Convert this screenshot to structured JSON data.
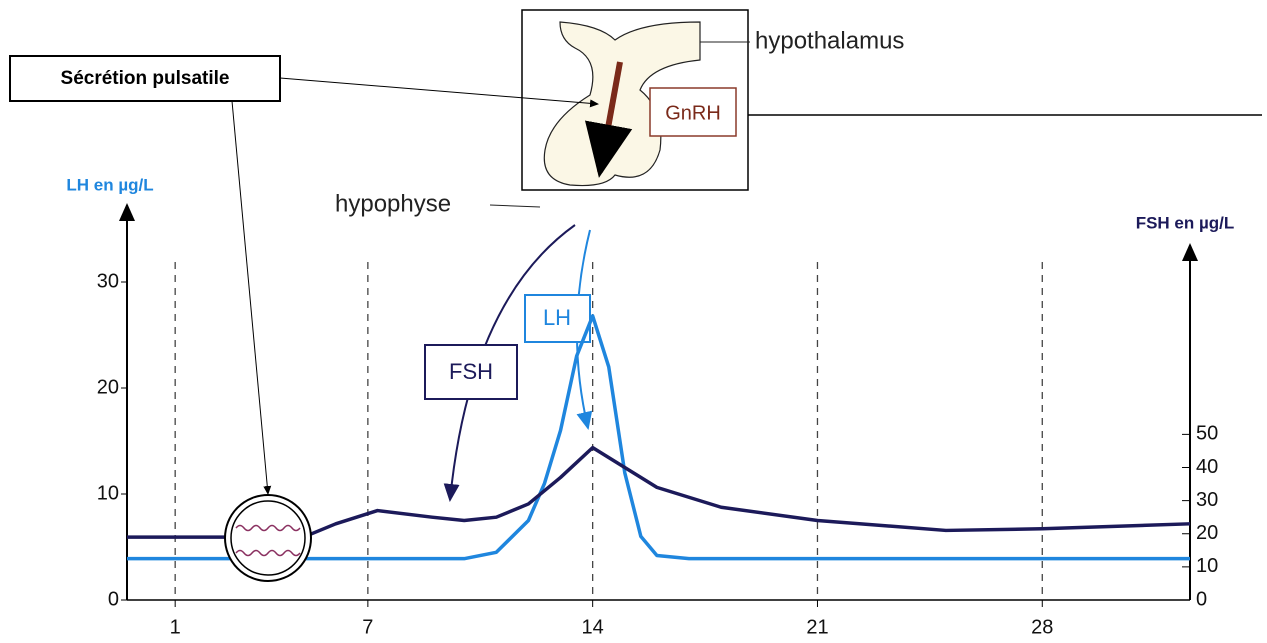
{
  "chart_data": {
    "type": "line",
    "ylabel": "LH en µg/L",
    "y2label": "FSH en µg/L",
    "callout": "Sécrétion pulsatile",
    "upper_label": "hypothalamus",
    "lower_label": "hypophyse",
    "hormone": "GnRH",
    "xlim": [
      -0.5,
      32.6
    ],
    "xticks": [
      1,
      7,
      14,
      21,
      28
    ],
    "ylim": [
      0,
      35
    ],
    "yticks": [
      0,
      10,
      20,
      30
    ],
    "y2lim": [
      0,
      112
    ],
    "y2ticks": [
      0,
      10,
      20,
      30,
      40,
      50
    ],
    "grid": true,
    "series": [
      {
        "name": "LH",
        "color": "#1f86de",
        "axis": "y",
        "x": [
          -0.5,
          10,
          11,
          12,
          12.5,
          13,
          13.5,
          14,
          14.5,
          15,
          15.5,
          16,
          17,
          32.6
        ],
        "values": [
          3.9,
          3.9,
          4.5,
          7.5,
          11,
          16,
          23,
          26.8,
          22,
          12,
          6,
          4.2,
          3.9,
          3.9
        ]
      },
      {
        "name": "FSH",
        "color": "#1c1a5a",
        "axis": "y2",
        "x": [
          -0.5,
          5,
          6,
          7.3,
          9,
          10,
          11,
          12,
          13,
          14,
          15,
          16,
          18,
          21,
          25,
          28,
          32.6
        ],
        "values": [
          19,
          19,
          23,
          27,
          25,
          24,
          25,
          29,
          37,
          46,
          40,
          34,
          28,
          24,
          21,
          21.5,
          23
        ]
      }
    ]
  }
}
